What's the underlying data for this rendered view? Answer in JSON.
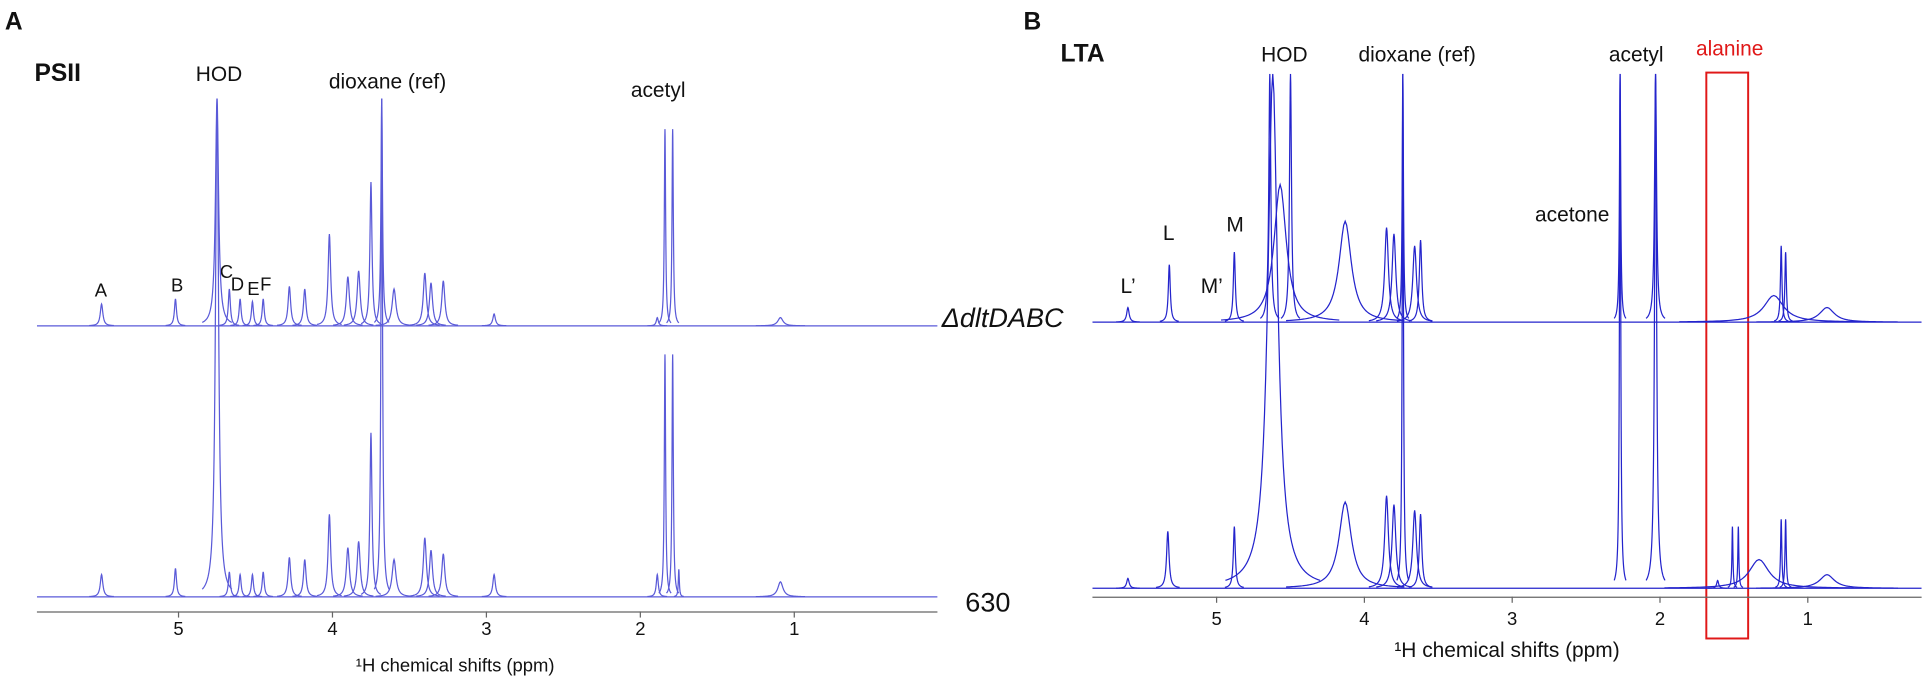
{
  "chart_data": [
    {
      "type": "spectrum",
      "panel_label": "A",
      "title": "PSII",
      "x_label": "¹H chemical shifts (ppm)",
      "annotations": [
        "HOD",
        "dioxane (ref)",
        "acetyl",
        "A",
        "B",
        "C",
        "D",
        "E",
        "F"
      ],
      "xlim": [
        5.92,
        0.07
      ],
      "xticks": [
        5,
        4,
        3,
        2,
        1
      ],
      "ylim": [
        0,
        100
      ],
      "color": "#5a5ad8",
      "series": [
        {
          "baseline": 55,
          "x": [
            5.5,
            5.02,
            4.75,
            4.67,
            4.6,
            4.52,
            4.45,
            4.28,
            4.18,
            4.02,
            3.9,
            3.83,
            3.75,
            3.68,
            3.6,
            3.4,
            3.36,
            3.28,
            2.95,
            1.89,
            1.84,
            1.79,
            1.09
          ],
          "values": [
            59.2,
            60.2,
            98.8,
            62.1,
            60.2,
            59.7,
            60.2,
            62.6,
            62.1,
            72.7,
            64.5,
            65.6,
            82.7,
            98.8,
            62.1,
            65.2,
            63.3,
            63.7,
            57.3,
            56.6,
            92.9,
            92.9,
            56.6
          ],
          "widths": [
            0.01,
            0.008,
            0.012,
            0.008,
            0.008,
            0.008,
            0.008,
            0.01,
            0.01,
            0.01,
            0.012,
            0.012,
            0.008,
            0.006,
            0.015,
            0.012,
            0.012,
            0.012,
            0.01,
            0.008,
            0.005,
            0.005,
            0.02
          ]
        },
        {
          "baseline": 2.8,
          "x": [
            5.5,
            5.02,
            4.75,
            4.67,
            4.6,
            4.52,
            4.45,
            4.28,
            4.18,
            4.02,
            3.9,
            3.83,
            3.75,
            3.68,
            3.6,
            3.4,
            3.36,
            3.28,
            2.95,
            1.89,
            1.84,
            1.79,
            1.75,
            1.09
          ],
          "values": [
            7.1,
            8.3,
            98.8,
            7.6,
            7.1,
            7.1,
            7.6,
            10.4,
            10.0,
            18.7,
            12.3,
            13.5,
            34.4,
            98.8,
            10.0,
            14.2,
            11.8,
            11.1,
            7.1,
            7.1,
            49.5,
            49.5,
            8.1,
            5.7
          ],
          "widths": [
            0.01,
            0.008,
            0.012,
            0.008,
            0.008,
            0.008,
            0.008,
            0.01,
            0.01,
            0.01,
            0.012,
            0.012,
            0.008,
            0.006,
            0.015,
            0.012,
            0.012,
            0.012,
            0.01,
            0.008,
            0.005,
            0.005,
            0.004,
            0.02
          ]
        }
      ]
    },
    {
      "type": "spectrum",
      "panel_label": "B",
      "title": "LTA",
      "x_label": "¹H chemical shifts (ppm)",
      "annotations": [
        "HOD",
        "dioxane (ref)",
        "acetyl",
        "alanine",
        "acetone",
        "L’",
        "L",
        "M’",
        "M"
      ],
      "xlim": [
        5.84,
        0.23
      ],
      "xticks": [
        5,
        4,
        3,
        2,
        1
      ],
      "ylim": [
        0,
        100
      ],
      "color": "#2424cc",
      "series": [
        {
          "name": "ΔdltDABC",
          "baseline": 52.5,
          "x": [
            5.6,
            5.32,
            4.88,
            4.64,
            4.5,
            4.57,
            4.13,
            3.85,
            3.8,
            3.74,
            3.66,
            3.62,
            2.27,
            2.03,
            1.23,
            1.18,
            1.15,
            0.87
          ],
          "values": [
            55.3,
            63.5,
            65.9,
            100,
            100,
            78.8,
            71.8,
            70.6,
            69.4,
            100,
            67.1,
            68.2,
            100,
            100,
            57.6,
            67.1,
            65.9,
            55.3
          ],
          "widths": [
            0.01,
            0.008,
            0.008,
            0.008,
            0.008,
            0.05,
            0.05,
            0.015,
            0.015,
            0.005,
            0.015,
            0.01,
            0.005,
            0.008,
            0.08,
            0.006,
            0.006,
            0.06
          ]
        },
        {
          "name": "630",
          "baseline": 1.6,
          "x": [
            5.6,
            5.33,
            4.88,
            4.62,
            4.13,
            3.85,
            3.8,
            3.74,
            3.66,
            3.62,
            2.27,
            2.03,
            1.61,
            1.51,
            1.47,
            1.33,
            1.18,
            1.15,
            0.87
          ],
          "values": [
            3.5,
            12.5,
            13.4,
            100,
            18.1,
            19.3,
            17.6,
            100,
            16.5,
            15.8,
            100,
            100,
            3.1,
            13.4,
            13.4,
            7.1,
            14.8,
            14.8,
            4.2
          ],
          "widths": [
            0.01,
            0.01,
            0.008,
            0.04,
            0.05,
            0.015,
            0.015,
            0.005,
            0.015,
            0.01,
            0.005,
            0.008,
            0.008,
            0.004,
            0.004,
            0.08,
            0.005,
            0.005,
            0.06
          ]
        }
      ]
    }
  ]
}
